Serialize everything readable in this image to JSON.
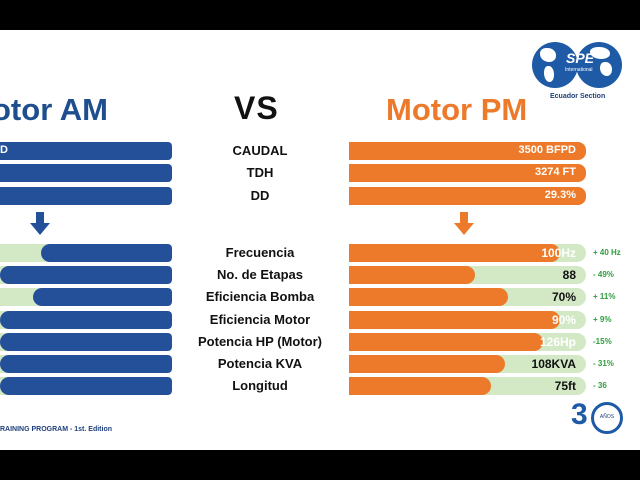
{
  "header": {
    "left_title": "otor AM",
    "vs": "VS",
    "right_title": "Motor PM"
  },
  "logo": {
    "brand": "SPE",
    "sub": "International",
    "caption": "Ecuador Section"
  },
  "top_rows": [
    {
      "label": "CAUDAL",
      "left_value": "D",
      "right_value": "3500 BFPD"
    },
    {
      "label": "TDH",
      "left_value": "",
      "right_value": "3274 FT"
    },
    {
      "label": "DD",
      "left_value": "",
      "right_value": "29.3%"
    }
  ],
  "compare_rows": [
    {
      "label": "Frecuencia",
      "am_fill": 0.76,
      "pm_fill": 0.89,
      "pm_value": "100Hz",
      "delta": "+ 40 Hz"
    },
    {
      "label": "No. de Etapas",
      "am_fill": 1.0,
      "pm_fill": 0.53,
      "pm_value": "88",
      "delta": "- 49%"
    },
    {
      "label": "Eficiencia Bomba",
      "am_fill": 0.81,
      "pm_fill": 0.67,
      "pm_value": "70%",
      "delta": "+ 11%"
    },
    {
      "label": "Eficiencia Motor",
      "am_fill": 1.0,
      "pm_fill": 0.89,
      "pm_value": "90%",
      "delta": "+ 9%"
    },
    {
      "label": "Potencia HP (Motor)",
      "am_fill": 1.0,
      "pm_fill": 0.82,
      "pm_value": "126Hp",
      "delta": "-15%"
    },
    {
      "label": "Potencia KVA",
      "am_fill": 1.0,
      "pm_fill": 0.66,
      "pm_value": "108KVA",
      "delta": "- 31%"
    },
    {
      "label": "Longitud",
      "am_fill": 1.0,
      "pm_fill": 0.6,
      "pm_value": "75ft",
      "delta": "- 36"
    }
  ],
  "footer": {
    "text": "RAINING PROGRAM - 1st. Edition",
    "anniversary_number": "3",
    "anniversary_word": "AÑOS"
  },
  "colors": {
    "am_blue": "#24509a",
    "pm_orange": "#ec7a2a",
    "track_green": "#d3e8c5",
    "delta_green": "#2e9e3e"
  }
}
